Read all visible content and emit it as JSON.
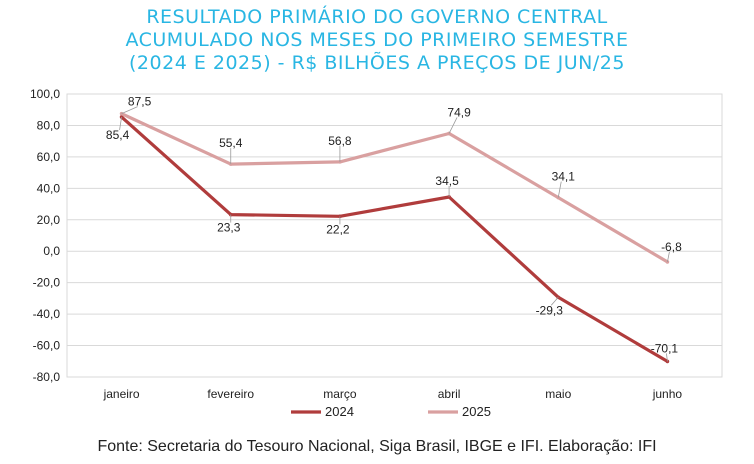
{
  "title_lines": [
    "RESULTADO PRIMÁRIO DO GOVERNO CENTRAL",
    "ACUMULADO NOS MESES DO PRIMEIRO SEMESTRE",
    "(2024 E 2025) - R$ BILHÕES A PREÇOS DE JUN/25"
  ],
  "source": "Fonte: Secretaria do Tesouro Nacional, Siga Brasil, IBGE e IFI. Elaboração: IFI",
  "colors": {
    "s2024": "#b03c3c",
    "s2025": "#d9a0a0",
    "grid": "#d9d9d9",
    "title": "#29b6e3"
  },
  "chart_data": {
    "type": "line",
    "categories": [
      "janeiro",
      "fevereiro",
      "março",
      "abril",
      "maio",
      "junho"
    ],
    "ylim": [
      -80,
      100
    ],
    "yticks": [
      "100,0",
      "80,0",
      "60,0",
      "40,0",
      "20,0",
      "0,0",
      "-20,0",
      "-40,0",
      "-60,0",
      "-80,0"
    ],
    "grid": true,
    "legend": "bottom",
    "series": [
      {
        "name": "2024",
        "values": [
          85.4,
          23.3,
          22.2,
          34.5,
          -29.3,
          -70.1
        ],
        "labels": [
          "85,4",
          "23,3",
          "22,2",
          "34,5",
          "-29,3",
          "-70,1"
        ]
      },
      {
        "name": "2025",
        "values": [
          87.5,
          55.4,
          56.8,
          74.9,
          34.1,
          -6.8
        ],
        "labels": [
          "87,5",
          "55,4",
          "56,8",
          "74,9",
          "34,1",
          "-6,8"
        ]
      }
    ]
  }
}
